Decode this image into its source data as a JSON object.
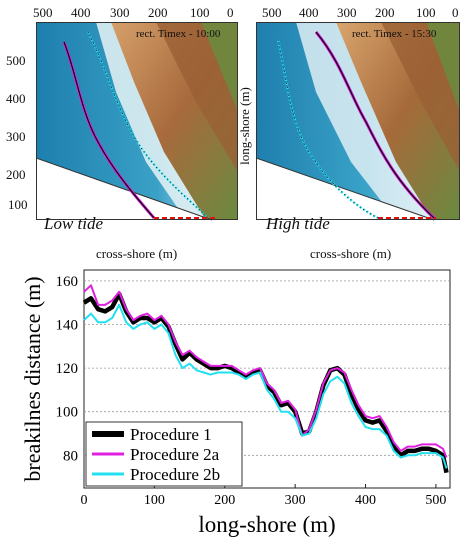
{
  "panels": [
    {
      "id": "left",
      "title": "rect. Timex - 10:00",
      "tide_label": "Low tide",
      "xlabel": "cross-shore (m)",
      "ylabel": "",
      "x_ticks": [
        "500",
        "400",
        "300",
        "200",
        "100",
        "0"
      ],
      "y_ticks": [
        "500",
        "400",
        "300",
        "200",
        "100"
      ]
    },
    {
      "id": "right",
      "title": "rect. Timex - 15:30",
      "tide_label": "High tide",
      "xlabel": "cross-shore (m)",
      "ylabel": "long-shore (m)",
      "x_ticks": [
        "500",
        "400",
        "300",
        "200",
        "100",
        "0"
      ]
    }
  ],
  "colors": {
    "procedure_1": "#000000",
    "procedure_2a": "#e020e0",
    "procedure_2b": "#22e0f0",
    "sea": "#2a8db8",
    "sand": "#c98a4c",
    "cliff": "#8a5a30",
    "baseline_dash": "#e01010"
  },
  "chart_data": {
    "type": "line",
    "title": "",
    "xlabel": "long-shore (m)",
    "ylabel": "breakilnes distance (m)",
    "xlim": [
      0,
      520
    ],
    "ylim": [
      65,
      165
    ],
    "x_ticks": [
      0,
      100,
      200,
      300,
      400,
      500
    ],
    "y_ticks": [
      80,
      100,
      120,
      140,
      160
    ],
    "grid": "horizontal dashed",
    "legend_position": "bottom-left",
    "x": [
      0,
      10,
      20,
      30,
      40,
      50,
      60,
      70,
      80,
      90,
      100,
      110,
      120,
      130,
      140,
      150,
      160,
      170,
      180,
      190,
      200,
      210,
      220,
      230,
      240,
      250,
      260,
      270,
      280,
      290,
      300,
      310,
      320,
      330,
      340,
      350,
      360,
      370,
      380,
      390,
      400,
      410,
      420,
      430,
      440,
      450,
      460,
      470,
      480,
      490,
      500,
      510,
      515
    ],
    "series": [
      {
        "name": "Procedure 1",
        "values": [
          150,
          152,
          147,
          146,
          148,
          154,
          146,
          141,
          143,
          143,
          141,
          143,
          139,
          131,
          124,
          127,
          124,
          122,
          120,
          120,
          121,
          120,
          118,
          116,
          118,
          119,
          112,
          109,
          103,
          104,
          100,
          90,
          91,
          100,
          112,
          119,
          120,
          117,
          108,
          101,
          96,
          95,
          96,
          91,
          84,
          80,
          82,
          82,
          83,
          83,
          82,
          80,
          72
        ]
      },
      {
        "name": "Procedure 2a",
        "values": [
          155,
          158,
          149,
          149,
          151,
          155,
          147,
          142,
          144,
          145,
          142,
          144,
          140,
          132,
          126,
          128,
          125,
          123,
          121,
          121,
          121,
          121,
          119,
          117,
          119,
          120,
          113,
          110,
          104,
          105,
          101,
          89,
          92,
          101,
          113,
          119,
          120,
          118,
          110,
          103,
          98,
          97,
          98,
          93,
          86,
          82,
          84,
          84,
          85,
          85,
          85,
          83,
          79
        ]
      },
      {
        "name": "Procedure 2b",
        "values": [
          142,
          145,
          141,
          141,
          143,
          149,
          141,
          138,
          140,
          141,
          138,
          140,
          136,
          126,
          120,
          122,
          119,
          118,
          117,
          118,
          118,
          118,
          117,
          115,
          117,
          118,
          110,
          106,
          100,
          100,
          97,
          89,
          90,
          97,
          108,
          114,
          116,
          113,
          104,
          98,
          93,
          92,
          92,
          89,
          82,
          79,
          80,
          80,
          81,
          81,
          81,
          79,
          74
        ]
      }
    ]
  }
}
